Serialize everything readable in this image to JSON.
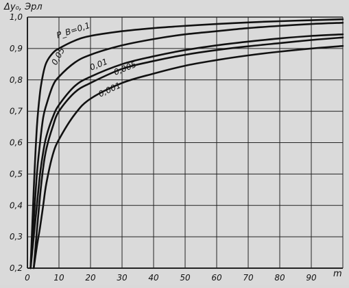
{
  "chart_data": {
    "type": "line",
    "title": "",
    "ylabel": "Δy₀, Эрл",
    "xlabel": "m",
    "xlim": [
      0,
      100
    ],
    "ylim": [
      0.2,
      1.0
    ],
    "xticks": [
      0,
      10,
      20,
      30,
      40,
      50,
      60,
      70,
      80,
      90
    ],
    "xtick_labels": [
      "0",
      "10",
      "20",
      "30",
      "40",
      "50",
      "60",
      "70",
      "80",
      "90"
    ],
    "yticks": [
      0.2,
      0.3,
      0.4,
      0.5,
      0.6,
      0.7,
      0.8,
      0.9,
      1.0
    ],
    "ytick_labels": [
      "0,2",
      "0,3",
      "0,4",
      "0,5",
      "0,6",
      "0,7",
      "0,8",
      "0,9",
      "1,0"
    ],
    "grid": true,
    "legend": "none",
    "series": [
      {
        "name": "P_B=0,1",
        "x": [
          1,
          2,
          3,
          4,
          5,
          6,
          8,
          10,
          15,
          20,
          30,
          40,
          50,
          60,
          70,
          80,
          90,
          100
        ],
        "y": [
          0.2,
          0.45,
          0.65,
          0.76,
          0.82,
          0.855,
          0.885,
          0.9,
          0.925,
          0.94,
          0.955,
          0.965,
          0.972,
          0.978,
          0.983,
          0.987,
          0.99,
          0.993
        ]
      },
      {
        "name": "0,05",
        "x": [
          1,
          2,
          3,
          4,
          5,
          6,
          8,
          10,
          15,
          20,
          30,
          40,
          50,
          60,
          70,
          80,
          90,
          100
        ],
        "y": [
          0.2,
          0.35,
          0.5,
          0.6,
          0.68,
          0.72,
          0.78,
          0.81,
          0.855,
          0.88,
          0.91,
          0.93,
          0.945,
          0.955,
          0.965,
          0.972,
          0.978,
          0.982
        ]
      },
      {
        "name": "0,01",
        "x": [
          1,
          2,
          3,
          4,
          5,
          6,
          8,
          10,
          15,
          20,
          30,
          40,
          50,
          60,
          70,
          80,
          90,
          100
        ],
        "y": [
          0.2,
          0.3,
          0.4,
          0.5,
          0.57,
          0.62,
          0.68,
          0.72,
          0.78,
          0.81,
          0.85,
          0.875,
          0.895,
          0.91,
          0.922,
          0.932,
          0.94,
          0.945
        ]
      },
      {
        "name": "0,005",
        "x": [
          2,
          3,
          4,
          5,
          6,
          8,
          10,
          15,
          20,
          30,
          40,
          50,
          60,
          70,
          80,
          90,
          100
        ],
        "y": [
          0.2,
          0.32,
          0.43,
          0.52,
          0.58,
          0.65,
          0.7,
          0.76,
          0.79,
          0.835,
          0.86,
          0.88,
          0.895,
          0.907,
          0.917,
          0.927,
          0.935
        ]
      },
      {
        "name": "0,001",
        "x": [
          2,
          3,
          4,
          5,
          6,
          8,
          10,
          15,
          20,
          30,
          40,
          50,
          60,
          70,
          80,
          90,
          100
        ],
        "y": [
          0.2,
          0.27,
          0.33,
          0.4,
          0.47,
          0.56,
          0.61,
          0.69,
          0.74,
          0.79,
          0.82,
          0.845,
          0.863,
          0.878,
          0.89,
          0.9,
          0.908
        ]
      }
    ]
  }
}
